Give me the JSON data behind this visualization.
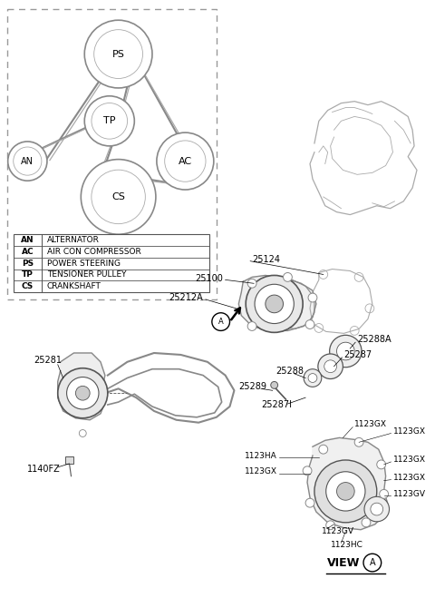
{
  "bg_color": "#ffffff",
  "line_color": "#aaaaaa",
  "dark_line": "#555555",
  "mid_line": "#888888",
  "black": "#000000",
  "legend_entries": [
    [
      "AN",
      "ALTERNATOR"
    ],
    [
      "AC",
      "AIR CON COMPRESSOR"
    ],
    [
      "PS",
      "POWER STEERING"
    ],
    [
      "TP",
      "TENSIONER PULLEY"
    ],
    [
      "CS",
      "CRANKSHAFT"
    ]
  ]
}
